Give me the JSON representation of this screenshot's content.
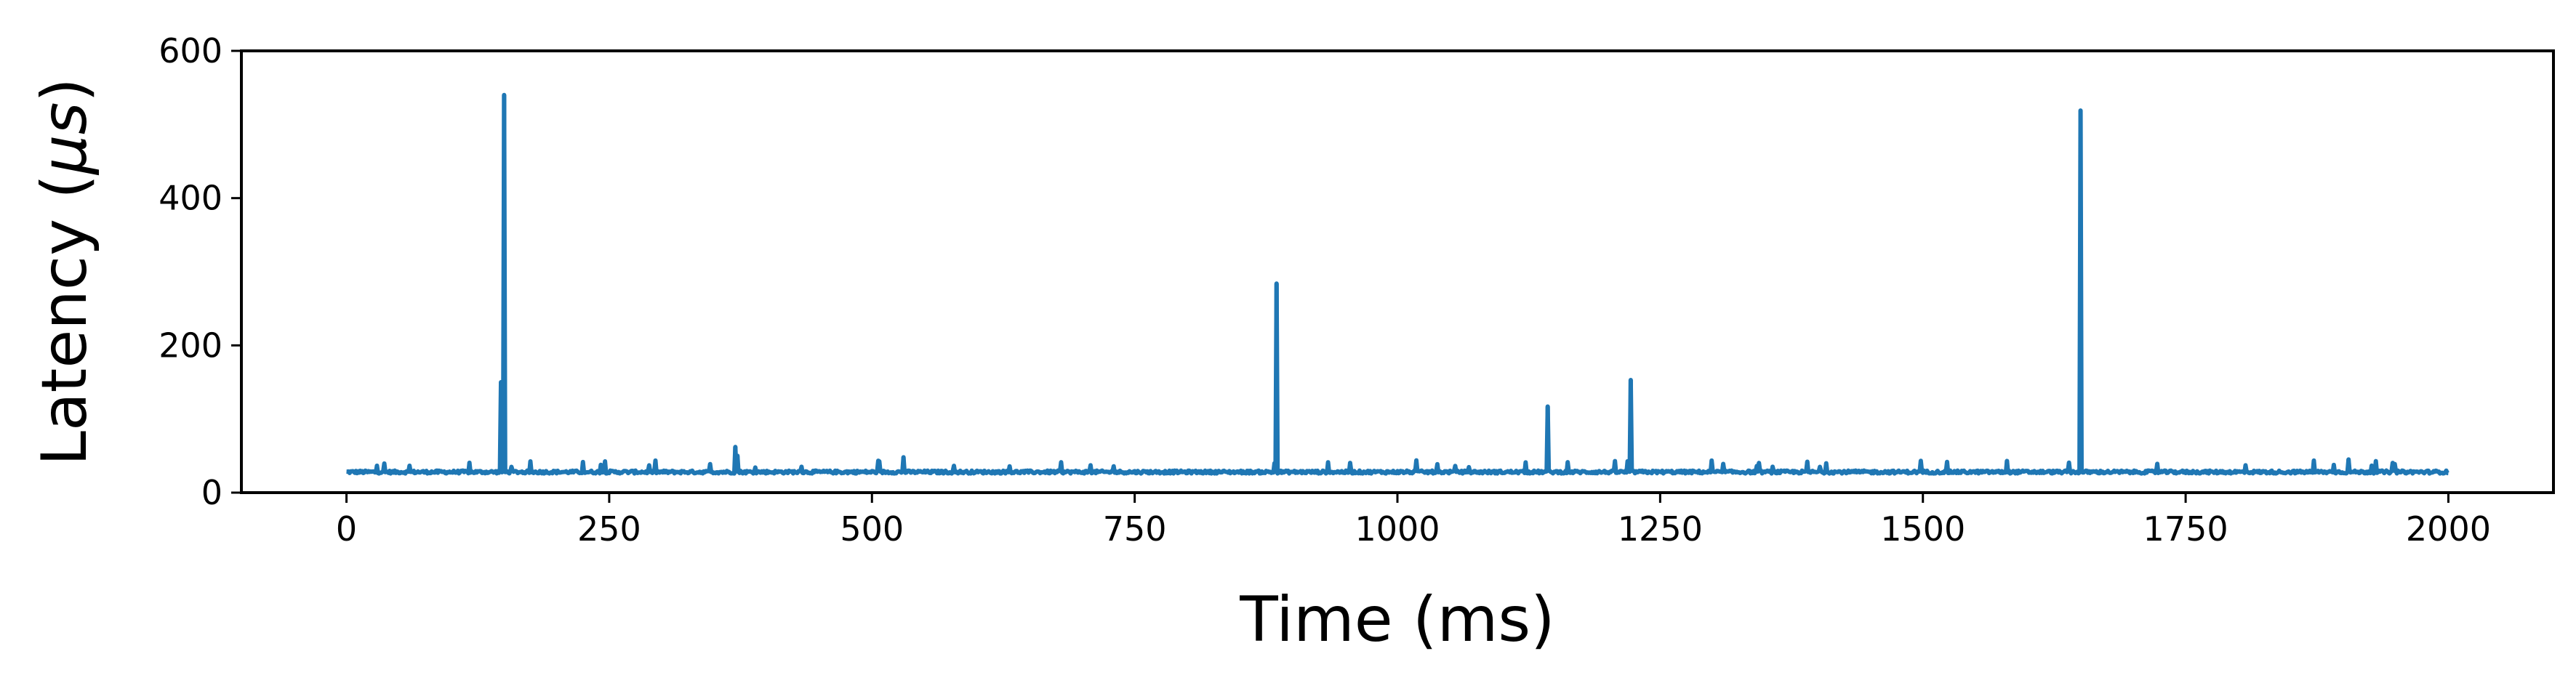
{
  "chart_data": {
    "type": "line",
    "title": "",
    "xlabel": "Time (ms)",
    "ylabel_prefix": "Latency (",
    "ylabel_mu": "μ",
    "ylabel_unit": "s",
    "ylabel_suffix": ")",
    "xlim": [
      -100,
      2100
    ],
    "ylim": [
      0,
      600
    ],
    "xticks": [
      0,
      250,
      500,
      750,
      1000,
      1250,
      1500,
      1750,
      2000
    ],
    "xtick_labels": [
      "0",
      "250",
      "500",
      "750",
      "1000",
      "1250",
      "1500",
      "1750",
      "2000"
    ],
    "yticks": [
      0,
      200,
      400,
      600
    ],
    "ytick_labels": [
      "0",
      "200",
      "400",
      "600"
    ],
    "grid": false,
    "legend": "none",
    "line_color": "#1f77b4",
    "baseline_latency": 28,
    "baseline_jitter": 4,
    "series": [
      {
        "name": "latency",
        "x": [
          0,
          2000
        ],
        "spikes": [
          {
            "x": 147,
            "y": 150
          },
          {
            "x": 150,
            "y": 540
          },
          {
            "x": 370,
            "y": 62
          },
          {
            "x": 372,
            "y": 50
          },
          {
            "x": 885,
            "y": 284
          },
          {
            "x": 1143,
            "y": 117
          },
          {
            "x": 1222,
            "y": 153
          },
          {
            "x": 1650,
            "y": 519
          },
          {
            "x": 530,
            "y": 48
          },
          {
            "x": 1905,
            "y": 45
          },
          {
            "x": 1580,
            "y": 43
          },
          {
            "x": 1390,
            "y": 42
          }
        ]
      }
    ]
  }
}
